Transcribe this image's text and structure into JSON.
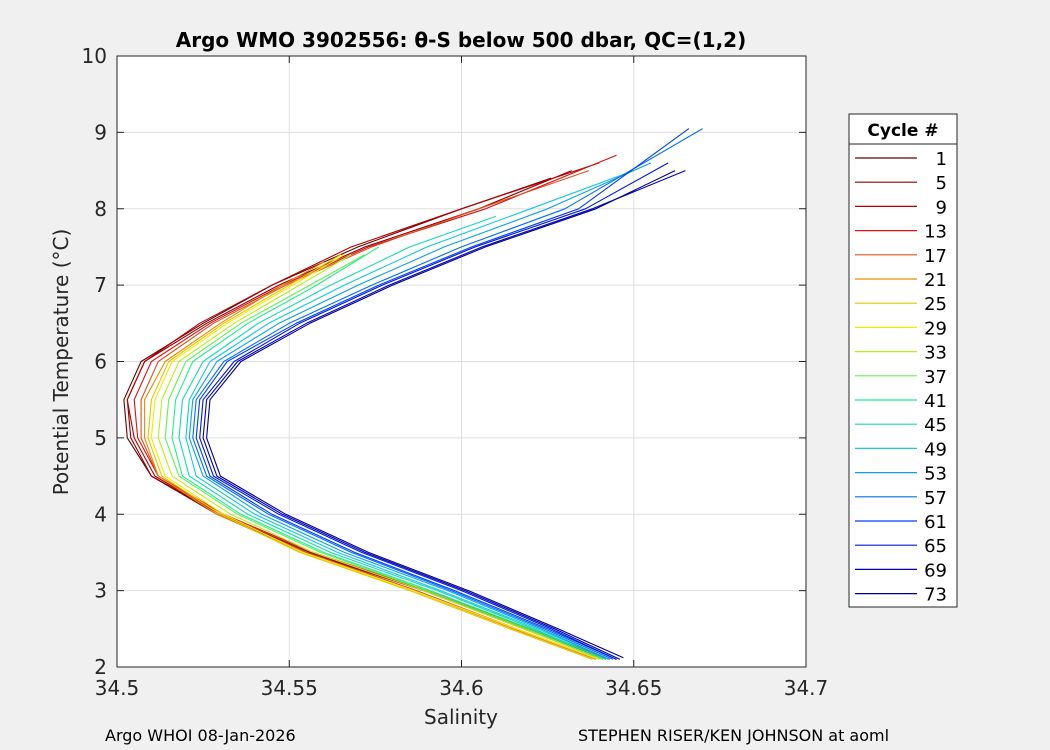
{
  "chart_data": {
    "type": "line",
    "title": "Argo WMO 3902556: θ-S below 500 dbar,  QC=(1,2)",
    "xlabel": "Salinity",
    "ylabel": "Potential Temperature (°C)",
    "xlim": [
      34.5,
      34.7
    ],
    "ylim": [
      2,
      10
    ],
    "xticks": [
      "34.5",
      "34.55",
      "34.6",
      "34.65",
      "34.7"
    ],
    "yticks": [
      "2",
      "3",
      "4",
      "5",
      "6",
      "7",
      "8",
      "9",
      "10"
    ],
    "grid": true,
    "legend": {
      "title": "Cycle #",
      "placement": "outside-right",
      "entries": [
        {
          "label": "1",
          "color": "#6b0000"
        },
        {
          "label": "5",
          "color": "#8f0000"
        },
        {
          "label": "9",
          "color": "#b30000"
        },
        {
          "label": "13",
          "color": "#d11414"
        },
        {
          "label": "17",
          "color": "#e0501a"
        },
        {
          "label": "21",
          "color": "#e88a00"
        },
        {
          "label": "25",
          "color": "#e6c400"
        },
        {
          "label": "29",
          "color": "#f0ec00"
        },
        {
          "label": "33",
          "color": "#b8ef1e"
        },
        {
          "label": "37",
          "color": "#66f050"
        },
        {
          "label": "41",
          "color": "#22ee90"
        },
        {
          "label": "45",
          "color": "#14d9b0"
        },
        {
          "label": "49",
          "color": "#13c8e0"
        },
        {
          "label": "53",
          "color": "#0aa0e8"
        },
        {
          "label": "57",
          "color": "#0070f0"
        },
        {
          "label": "61",
          "color": "#0040f0"
        },
        {
          "label": "65",
          "color": "#0018d8"
        },
        {
          "label": "69",
          "color": "#0000b8"
        },
        {
          "label": "73",
          "color": "#00008c"
        }
      ]
    },
    "series": [
      {
        "color": "#6b0000",
        "points": [
          [
            34.643,
            2.1
          ],
          [
            34.62,
            2.5
          ],
          [
            34.59,
            3.0
          ],
          [
            34.556,
            3.5
          ],
          [
            34.53,
            4.0
          ],
          [
            34.51,
            4.5
          ],
          [
            34.503,
            5.0
          ],
          [
            34.502,
            5.5
          ],
          [
            34.507,
            6.0
          ],
          [
            34.525,
            6.5
          ],
          [
            34.545,
            7.0
          ],
          [
            34.57,
            7.5
          ],
          [
            34.6,
            8.0
          ],
          [
            34.626,
            8.4
          ]
        ]
      },
      {
        "color": "#8f0000",
        "points": [
          [
            34.642,
            2.1
          ],
          [
            34.619,
            2.5
          ],
          [
            34.589,
            3.0
          ],
          [
            34.555,
            3.5
          ],
          [
            34.529,
            4.0
          ],
          [
            34.51,
            4.5
          ],
          [
            34.504,
            5.0
          ],
          [
            34.503,
            5.5
          ],
          [
            34.508,
            6.0
          ],
          [
            34.526,
            6.5
          ],
          [
            34.547,
            7.0
          ],
          [
            34.572,
            7.5
          ],
          [
            34.605,
            8.0
          ],
          [
            34.632,
            8.5
          ]
        ]
      },
      {
        "color": "#b30000",
        "points": [
          [
            34.641,
            2.1
          ],
          [
            34.618,
            2.5
          ],
          [
            34.589,
            3.0
          ],
          [
            34.556,
            3.5
          ],
          [
            34.53,
            4.0
          ],
          [
            34.511,
            4.5
          ],
          [
            34.505,
            5.0
          ],
          [
            34.503,
            5.5
          ],
          [
            34.508,
            6.0
          ],
          [
            34.524,
            6.5
          ],
          [
            34.545,
            7.0
          ],
          [
            34.568,
            7.5
          ],
          [
            34.6,
            8.0
          ],
          [
            34.64,
            8.6
          ]
        ]
      },
      {
        "color": "#d11414",
        "points": [
          [
            34.643,
            2.1
          ],
          [
            34.619,
            2.5
          ],
          [
            34.59,
            3.0
          ],
          [
            34.557,
            3.5
          ],
          [
            34.531,
            4.0
          ],
          [
            34.512,
            4.5
          ],
          [
            34.506,
            5.0
          ],
          [
            34.505,
            5.5
          ],
          [
            34.51,
            6.0
          ],
          [
            34.527,
            6.5
          ],
          [
            34.548,
            7.0
          ],
          [
            34.573,
            7.5
          ],
          [
            34.607,
            8.0
          ],
          [
            34.645,
            8.7
          ]
        ]
      },
      {
        "color": "#e0501a",
        "points": [
          [
            34.64,
            2.1
          ],
          [
            34.616,
            2.5
          ],
          [
            34.587,
            3.0
          ],
          [
            34.555,
            3.5
          ],
          [
            34.53,
            4.0
          ],
          [
            34.512,
            4.5
          ],
          [
            34.507,
            5.0
          ],
          [
            34.507,
            5.5
          ],
          [
            34.512,
            6.0
          ],
          [
            34.528,
            6.5
          ],
          [
            34.549,
            7.0
          ],
          [
            34.574,
            7.5
          ],
          [
            34.605,
            8.0
          ],
          [
            34.637,
            8.5
          ]
        ]
      },
      {
        "color": "#e88a00",
        "points": [
          [
            34.639,
            2.1
          ],
          [
            34.615,
            2.5
          ],
          [
            34.586,
            3.0
          ],
          [
            34.554,
            3.5
          ],
          [
            34.529,
            4.0
          ],
          [
            34.512,
            4.5
          ],
          [
            34.508,
            5.0
          ],
          [
            34.508,
            5.5
          ],
          [
            34.514,
            6.0
          ],
          [
            34.53,
            6.5
          ],
          [
            34.548,
            7.0
          ],
          [
            34.56,
            7.3
          ]
        ]
      },
      {
        "color": "#e6c400",
        "points": [
          [
            34.638,
            2.1
          ],
          [
            34.614,
            2.5
          ],
          [
            34.585,
            3.0
          ],
          [
            34.553,
            3.5
          ],
          [
            34.53,
            4.0
          ],
          [
            34.513,
            4.5
          ],
          [
            34.509,
            5.0
          ],
          [
            34.51,
            5.5
          ],
          [
            34.515,
            6.0
          ],
          [
            34.531,
            6.5
          ],
          [
            34.55,
            7.0
          ],
          [
            34.565,
            7.4
          ]
        ]
      },
      {
        "color": "#f0ec00",
        "points": [
          [
            34.64,
            2.1
          ],
          [
            34.616,
            2.5
          ],
          [
            34.586,
            3.0
          ],
          [
            34.554,
            3.5
          ],
          [
            34.531,
            4.0
          ],
          [
            34.514,
            4.5
          ],
          [
            34.51,
            5.0
          ],
          [
            34.511,
            5.5
          ],
          [
            34.516,
            6.0
          ],
          [
            34.532,
            6.5
          ],
          [
            34.551,
            7.0
          ],
          [
            34.566,
            7.4
          ]
        ]
      },
      {
        "color": "#b8ef1e",
        "points": [
          [
            34.641,
            2.1
          ],
          [
            34.618,
            2.5
          ],
          [
            34.589,
            3.0
          ],
          [
            34.557,
            3.5
          ],
          [
            34.533,
            4.0
          ],
          [
            34.516,
            4.5
          ],
          [
            34.512,
            5.0
          ],
          [
            34.513,
            5.5
          ],
          [
            34.518,
            6.0
          ],
          [
            34.534,
            6.5
          ],
          [
            34.553,
            7.0
          ],
          [
            34.568,
            7.4
          ]
        ]
      },
      {
        "color": "#66f050",
        "points": [
          [
            34.641,
            2.1
          ],
          [
            34.619,
            2.5
          ],
          [
            34.59,
            3.0
          ],
          [
            34.559,
            3.5
          ],
          [
            34.535,
            4.0
          ],
          [
            34.518,
            4.5
          ],
          [
            34.514,
            5.0
          ],
          [
            34.515,
            5.5
          ],
          [
            34.52,
            6.0
          ],
          [
            34.536,
            6.5
          ],
          [
            34.556,
            7.0
          ],
          [
            34.572,
            7.4
          ]
        ]
      },
      {
        "color": "#22ee90",
        "points": [
          [
            34.642,
            2.1
          ],
          [
            34.62,
            2.5
          ],
          [
            34.591,
            3.0
          ],
          [
            34.56,
            3.5
          ],
          [
            34.536,
            4.0
          ],
          [
            34.519,
            4.5
          ],
          [
            34.516,
            5.0
          ],
          [
            34.517,
            5.5
          ],
          [
            34.522,
            6.0
          ],
          [
            34.538,
            6.5
          ],
          [
            34.558,
            7.0
          ],
          [
            34.576,
            7.5
          ]
        ]
      },
      {
        "color": "#14d9b0",
        "points": [
          [
            34.642,
            2.1
          ],
          [
            34.621,
            2.5
          ],
          [
            34.593,
            3.0
          ],
          [
            34.562,
            3.5
          ],
          [
            34.538,
            4.0
          ],
          [
            34.521,
            4.5
          ],
          [
            34.518,
            5.0
          ],
          [
            34.519,
            5.5
          ],
          [
            34.525,
            6.0
          ],
          [
            34.541,
            6.5
          ],
          [
            34.562,
            7.0
          ],
          [
            34.585,
            7.5
          ],
          [
            34.61,
            7.9
          ]
        ]
      },
      {
        "color": "#13c8e0",
        "points": [
          [
            34.643,
            2.1
          ],
          [
            34.622,
            2.5
          ],
          [
            34.594,
            3.0
          ],
          [
            34.564,
            3.5
          ],
          [
            34.54,
            4.0
          ],
          [
            34.523,
            4.5
          ],
          [
            34.52,
            5.0
          ],
          [
            34.521,
            5.5
          ],
          [
            34.527,
            6.0
          ],
          [
            34.544,
            6.5
          ],
          [
            34.566,
            7.0
          ],
          [
            34.59,
            7.5
          ],
          [
            34.62,
            8.0
          ],
          [
            34.65,
            8.5
          ]
        ]
      },
      {
        "color": "#0aa0e8",
        "points": [
          [
            34.643,
            2.1
          ],
          [
            34.623,
            2.5
          ],
          [
            34.596,
            3.0
          ],
          [
            34.566,
            3.5
          ],
          [
            34.542,
            4.0
          ],
          [
            34.525,
            4.5
          ],
          [
            34.521,
            5.0
          ],
          [
            34.522,
            5.5
          ],
          [
            34.529,
            6.0
          ],
          [
            34.547,
            6.5
          ],
          [
            34.57,
            7.0
          ],
          [
            34.595,
            7.5
          ],
          [
            34.625,
            8.0
          ],
          [
            34.655,
            8.6
          ]
        ]
      },
      {
        "color": "#0070f0",
        "points": [
          [
            34.644,
            2.1
          ],
          [
            34.624,
            2.5
          ],
          [
            34.597,
            3.0
          ],
          [
            34.568,
            3.5
          ],
          [
            34.544,
            4.0
          ],
          [
            34.526,
            4.5
          ],
          [
            34.522,
            5.0
          ],
          [
            34.523,
            5.5
          ],
          [
            34.531,
            6.0
          ],
          [
            34.55,
            6.5
          ],
          [
            34.574,
            7.0
          ],
          [
            34.6,
            7.5
          ],
          [
            34.63,
            8.0
          ],
          [
            34.67,
            9.05
          ]
        ]
      },
      {
        "color": "#0040f0",
        "points": [
          [
            34.645,
            2.1
          ],
          [
            34.625,
            2.5
          ],
          [
            34.598,
            3.0
          ],
          [
            34.569,
            3.5
          ],
          [
            34.545,
            4.0
          ],
          [
            34.527,
            4.5
          ],
          [
            34.523,
            5.0
          ],
          [
            34.524,
            5.5
          ],
          [
            34.532,
            6.0
          ],
          [
            34.552,
            6.5
          ],
          [
            34.576,
            7.0
          ],
          [
            34.603,
            7.5
          ],
          [
            34.634,
            8.0
          ],
          [
            34.666,
            9.05
          ]
        ]
      },
      {
        "color": "#0018d8",
        "points": [
          [
            34.645,
            2.1
          ],
          [
            34.626,
            2.5
          ],
          [
            34.6,
            3.0
          ],
          [
            34.571,
            3.5
          ],
          [
            34.547,
            4.0
          ],
          [
            34.528,
            4.5
          ],
          [
            34.524,
            5.0
          ],
          [
            34.525,
            5.5
          ],
          [
            34.534,
            6.0
          ],
          [
            34.553,
            6.5
          ],
          [
            34.577,
            7.0
          ],
          [
            34.604,
            7.5
          ],
          [
            34.636,
            8.0
          ],
          [
            34.66,
            8.6
          ]
        ]
      },
      {
        "color": "#0000b8",
        "points": [
          [
            34.646,
            2.1
          ],
          [
            34.627,
            2.5
          ],
          [
            34.601,
            3.0
          ],
          [
            34.572,
            3.5
          ],
          [
            34.548,
            4.0
          ],
          [
            34.529,
            4.5
          ],
          [
            34.525,
            5.0
          ],
          [
            34.526,
            5.5
          ],
          [
            34.535,
            6.0
          ],
          [
            34.555,
            6.5
          ],
          [
            34.579,
            7.0
          ],
          [
            34.606,
            7.5
          ],
          [
            34.638,
            8.0
          ],
          [
            34.665,
            8.5
          ]
        ]
      },
      {
        "color": "#00008c",
        "points": [
          [
            34.647,
            2.12
          ],
          [
            34.628,
            2.5
          ],
          [
            34.602,
            3.0
          ],
          [
            34.573,
            3.5
          ],
          [
            34.549,
            4.0
          ],
          [
            34.53,
            4.5
          ],
          [
            34.526,
            5.0
          ],
          [
            34.527,
            5.5
          ],
          [
            34.536,
            6.0
          ],
          [
            34.556,
            6.5
          ],
          [
            34.58,
            7.0
          ],
          [
            34.607,
            7.5
          ],
          [
            34.639,
            8.0
          ],
          [
            34.662,
            8.5
          ]
        ]
      }
    ]
  },
  "footer": {
    "left": "Argo WHOI 08-Jan-2026",
    "right": "STEPHEN RISER/KEN JOHNSON at aoml"
  }
}
